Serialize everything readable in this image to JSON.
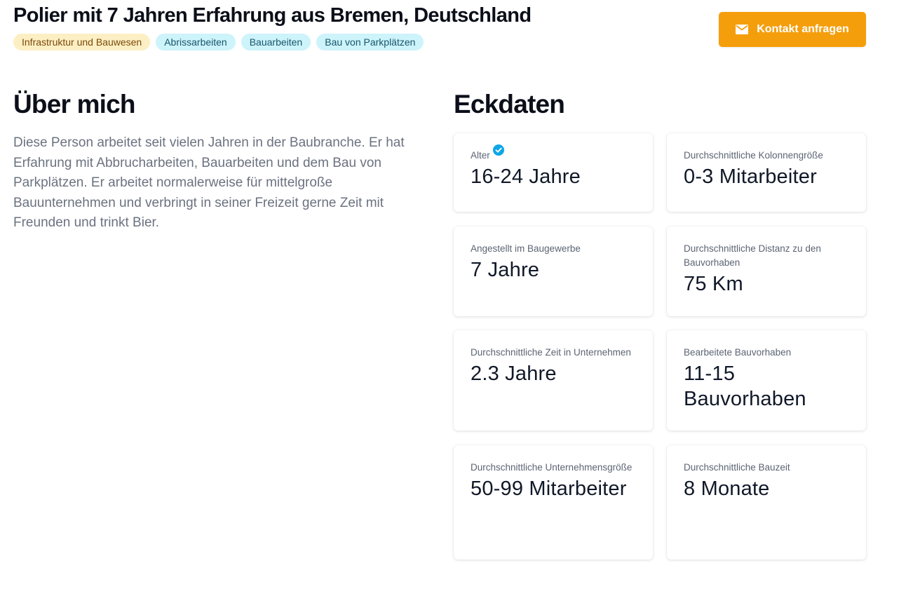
{
  "header": {
    "title": "Polier mit 7 Jahren Erfahrung aus Bremen, Deutschland",
    "tags": [
      "Infrastruktur und Bauwesen",
      "Abrissarbeiten",
      "Bauarbeiten",
      "Bau von Parkplätzen"
    ],
    "contact_button": {
      "label": "Kontakt anfragen",
      "icon": "mail-icon"
    }
  },
  "about": {
    "title": "Über mich",
    "text": "Diese Person arbeitet seit vielen Jahren in der Baubranche. Er hat Erfahrung mit Abbrucharbeiten, Bauarbeiten und dem Bau von Parkplätzen. Er arbeitet normalerweise für mittelgroße Bauunternehmen und verbringt in seiner Freizeit gerne Zeit mit Freunden und trinkt Bier."
  },
  "facts": {
    "title": "Eckdaten",
    "cards": [
      {
        "label": "Alter",
        "value": "16-24 Jahre",
        "verified": true
      },
      {
        "label": "Durchschnittliche Kolonnengröße",
        "value": "0-3 Mitarbeiter"
      },
      {
        "label": "Angestellt im Baugewerbe",
        "value": "7 Jahre"
      },
      {
        "label": "Durchschnittliche Distanz zu den Bauvorhaben",
        "value": "75 Km"
      },
      {
        "label": "Durchschnittliche Zeit in Unternehmen",
        "value": "2.3 Jahre"
      },
      {
        "label": "Bearbeitete Bauvorhaben",
        "value": "11-15 Bauvorhaben"
      },
      {
        "label": "Durchschnittliche Unternehmensgröße",
        "value": "50-99 Mitarbeiter"
      },
      {
        "label": "Durchschnittliche Bauzeit",
        "value": "8 Monate"
      }
    ]
  },
  "colors": {
    "accent": "#f59e0b",
    "verified": "#0ea5e9",
    "industry_tag_bg": "#fdefc4",
    "skill_tag_bg": "#cdf3fb"
  }
}
